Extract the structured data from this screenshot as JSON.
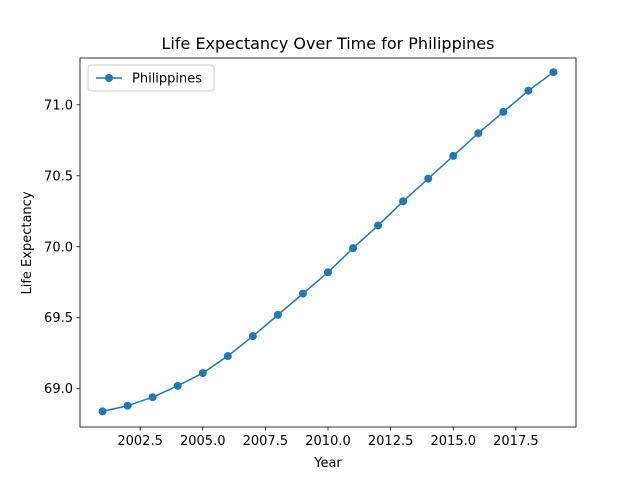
{
  "chart_data": {
    "type": "line",
    "title": "Life Expectancy Over Time for Philippines",
    "xlabel": "Year",
    "ylabel": "Life Expectancy",
    "xlim": [
      2000.1,
      2019.9
    ],
    "ylim": [
      68.73,
      71.33
    ],
    "xticks": [
      2002.5,
      2005.0,
      2007.5,
      2010.0,
      2012.5,
      2015.0,
      2017.5
    ],
    "xtick_labels": [
      "2002.5",
      "2005.0",
      "2007.5",
      "2010.0",
      "2012.5",
      "2015.0",
      "2017.5"
    ],
    "yticks": [
      69.0,
      69.5,
      70.0,
      70.5,
      71.0
    ],
    "ytick_labels": [
      "69.0",
      "69.5",
      "70.0",
      "70.5",
      "71.0"
    ],
    "grid": false,
    "legend_position": "top-left",
    "color": "#1f77b4",
    "series": [
      {
        "name": "Philippines",
        "x": [
          2001,
          2002,
          2003,
          2004,
          2005,
          2006,
          2007,
          2008,
          2009,
          2010,
          2011,
          2012,
          2013,
          2014,
          2015,
          2016,
          2017,
          2018,
          2019
        ],
        "y": [
          68.84,
          68.88,
          68.94,
          69.02,
          69.11,
          69.23,
          69.37,
          69.52,
          69.67,
          69.82,
          69.99,
          70.15,
          70.32,
          70.48,
          70.64,
          70.8,
          70.95,
          71.1,
          71.23
        ]
      }
    ]
  }
}
